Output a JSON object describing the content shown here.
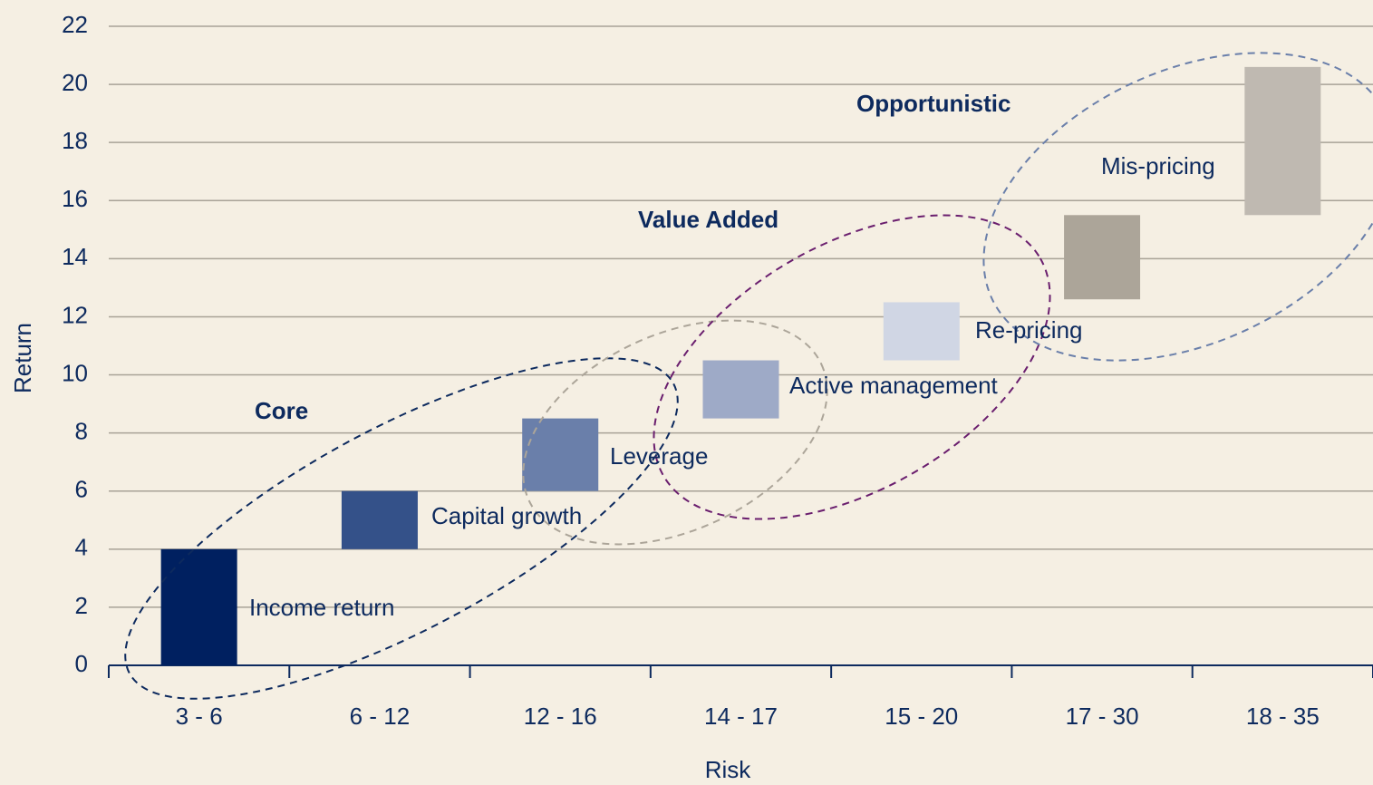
{
  "chart_data": {
    "type": "floating-bar",
    "x_label": "Risk",
    "y_label": "Return",
    "categories": [
      "3 - 6",
      "6 - 12",
      "12 - 16",
      "14 - 17",
      "15 - 20",
      "17 - 30",
      "18 - 35"
    ],
    "ranges": [
      [
        0,
        4
      ],
      [
        4,
        6
      ],
      [
        6,
        8.5
      ],
      [
        8.5,
        10.5
      ],
      [
        10.5,
        12.5
      ],
      [
        12.6,
        15.5
      ],
      [
        15.5,
        20.6
      ]
    ],
    "colors": [
      "#002060",
      "#345189",
      "#6a7faa",
      "#9eaac7",
      "#d0d6e4",
      "#aca599",
      "#bfb9b1"
    ],
    "ylim": [
      0,
      22
    ],
    "yticks": [
      0,
      2,
      4,
      6,
      8,
      10,
      12,
      14,
      16,
      18,
      20,
      22
    ],
    "grid": true,
    "annotations": [
      "Core",
      "Value Added",
      "Opportunistic",
      "Income return",
      "Capital growth",
      "Leverage",
      "Active management",
      "Re-pricing",
      "Mis-pricing"
    ]
  }
}
